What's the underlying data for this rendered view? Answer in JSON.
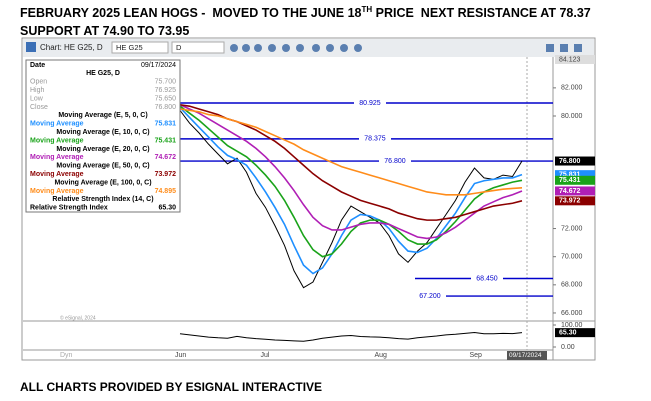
{
  "header": {
    "title": [
      "FEBRUARY 2025 LEAN HOGS -  MOVED TO THE JUNE 18",
      "TH",
      " PRICE  NEXT RESISTANCE AT 78.37  SUPPORT AT 74.90 TO 73.95"
    ]
  },
  "footer": "ALL CHARTS PROVIDED BY ESIGNAL INTERACTIVE",
  "toolbar": {
    "title": "Chart: HE G25, D",
    "symbol": "HE G25",
    "interval": "D"
  },
  "dyn_label": "Dyn",
  "watermark": "© eSignal, 2024",
  "info_panel": {
    "date_label": "Date",
    "date": "09/17/2024",
    "symbol": "HE G25, D",
    "rows": [
      [
        "Open",
        "75.700"
      ],
      [
        "High",
        "76.925"
      ],
      [
        "Low",
        "75.650"
      ],
      [
        "Close",
        "76.800"
      ]
    ],
    "ma_title": "Moving Average",
    "rsi_title": "Relative Strength Index"
  },
  "chart_data": [
    {
      "type": "line",
      "categories": [
        "Jun",
        null,
        null,
        null,
        null,
        null,
        null,
        null,
        null,
        "Jul",
        null,
        null,
        null,
        null,
        null,
        null,
        null,
        null,
        null,
        null,
        null,
        "Aug",
        null,
        null,
        null,
        null,
        null,
        null,
        null,
        null,
        null,
        "Sep",
        null,
        null,
        null,
        null,
        null
      ],
      "ylim": [
        65.5,
        84.123
      ],
      "yticks": [
        {
          "value": 66,
          "label": "66.000"
        },
        {
          "value": 68,
          "label": "68.000"
        },
        {
          "value": 70,
          "label": "70.000"
        },
        {
          "value": 72,
          "label": "72.000"
        },
        {
          "value": 80,
          "label": "80.000"
        },
        {
          "value": 82,
          "label": "82.000"
        }
      ],
      "close": {
        "color": "#000000",
        "values": [
          80.4,
          79.5,
          78.8,
          78.0,
          77.3,
          76.6,
          77.0,
          76.0,
          74.5,
          73.5,
          72.2,
          70.8,
          69.0,
          67.8,
          68.2,
          69.6,
          71.0,
          72.6,
          73.6,
          73.2,
          72.8,
          72.4,
          71.5,
          70.2,
          69.6,
          70.4,
          71.0,
          72.0,
          73.0,
          74.0,
          75.3,
          76.3,
          75.6,
          75.5,
          75.8,
          75.7,
          76.8
        ]
      },
      "series": [
        {
          "name": "Moving Average (E, 5, 0, C)",
          "color": "#1e8fff",
          "values": [
            80.6,
            79.9,
            79.2,
            78.5,
            77.8,
            77.2,
            76.9,
            76.5,
            75.6,
            74.6,
            73.5,
            72.3,
            70.8,
            69.4,
            68.8,
            69.2,
            70.2,
            71.5,
            72.6,
            73.0,
            72.9,
            72.6,
            72.0,
            71.1,
            70.4,
            70.3,
            70.6,
            71.3,
            72.2,
            73.1,
            74.2,
            75.2,
            75.4,
            75.5,
            75.6,
            75.6,
            75.831
          ]
        },
        {
          "name": "Moving Average (E, 10, 0, C)",
          "color": "#1aa31a",
          "values": [
            80.7,
            80.2,
            79.7,
            79.1,
            78.5,
            77.9,
            77.5,
            77.1,
            76.5,
            75.8,
            75.0,
            74.0,
            72.8,
            71.5,
            70.5,
            70.0,
            70.2,
            70.9,
            71.8,
            72.4,
            72.6,
            72.6,
            72.3,
            71.8,
            71.2,
            70.9,
            70.9,
            71.2,
            71.8,
            72.5,
            73.3,
            74.1,
            74.6,
            74.9,
            75.1,
            75.3,
            75.431
          ]
        },
        {
          "name": "Moving Average (E, 20, 0, C)",
          "color": "#b01fb5",
          "values": [
            80.8,
            80.5,
            80.2,
            79.8,
            79.4,
            79.0,
            78.6,
            78.2,
            77.7,
            77.1,
            76.4,
            75.6,
            74.7,
            73.7,
            72.8,
            72.2,
            71.9,
            71.9,
            72.1,
            72.3,
            72.4,
            72.4,
            72.3,
            72.0,
            71.7,
            71.4,
            71.3,
            71.4,
            71.7,
            72.1,
            72.6,
            73.1,
            73.6,
            73.9,
            74.2,
            74.4,
            74.672
          ]
        },
        {
          "name": "Moving Average (E, 50, 0, C)",
          "color": "#8b0000",
          "values": [
            80.8,
            80.7,
            80.5,
            80.3,
            80.1,
            79.8,
            79.6,
            79.3,
            79.0,
            78.6,
            78.2,
            77.7,
            77.1,
            76.5,
            75.9,
            75.4,
            75.0,
            74.6,
            74.3,
            74.0,
            73.8,
            73.6,
            73.4,
            73.1,
            72.9,
            72.7,
            72.6,
            72.6,
            72.7,
            72.8,
            73.0,
            73.2,
            73.4,
            73.6,
            73.7,
            73.8,
            73.972
          ]
        },
        {
          "name": "Moving Average (E, 100, 0, C)",
          "color": "#ff8c1a",
          "values": [
            80.5,
            80.4,
            80.3,
            80.1,
            80.0,
            79.8,
            79.6,
            79.4,
            79.2,
            78.9,
            78.6,
            78.3,
            78.0,
            77.6,
            77.3,
            77.0,
            76.7,
            76.4,
            76.2,
            76.0,
            75.8,
            75.6,
            75.4,
            75.2,
            75.0,
            74.8,
            74.6,
            74.5,
            74.4,
            74.4,
            74.4,
            74.5,
            74.6,
            74.7,
            74.8,
            74.85,
            74.895
          ]
        }
      ],
      "levels": [
        {
          "value": 80.925,
          "label": "80.925"
        },
        {
          "value": 78.375,
          "label": "78.375"
        },
        {
          "value": 76.8,
          "label": "76.800"
        },
        {
          "value": 68.45,
          "label": "68.450"
        },
        {
          "value": 67.2,
          "label": "67.200"
        }
      ],
      "level_color": "#0000cc"
    },
    {
      "type": "line",
      "ylim": [
        0,
        100
      ],
      "yticks": [
        {
          "value": 0,
          "label": "0.00"
        },
        {
          "value": 100,
          "label": "100.00"
        }
      ],
      "series": [
        {
          "name": "Relative Strength Index (14, C)",
          "color": "#000000",
          "values": [
            60,
            55,
            50,
            45,
            42,
            40,
            48,
            42,
            38,
            35,
            32,
            30,
            28,
            26,
            32,
            40,
            45,
            50,
            52,
            48,
            46,
            45,
            42,
            38,
            36,
            42,
            46,
            50,
            55,
            58,
            62,
            66,
            60,
            60,
            62,
            61,
            65.3
          ]
        }
      ],
      "current": {
        "value": 65.3,
        "label": "65.30"
      }
    }
  ]
}
